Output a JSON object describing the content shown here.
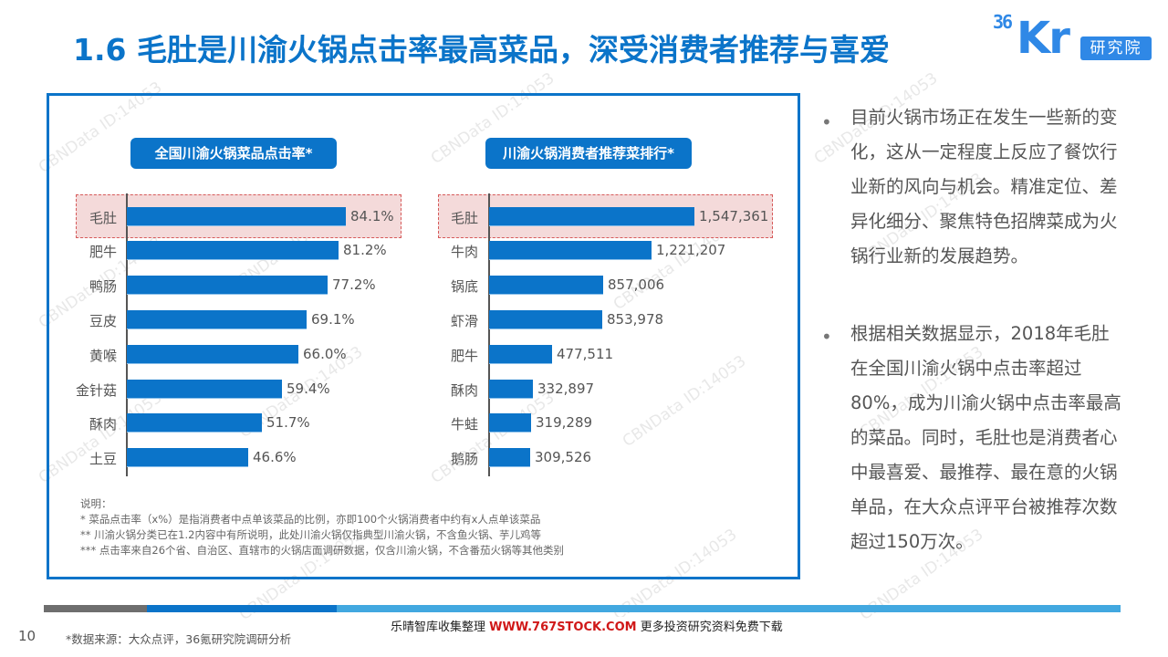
{
  "header": {
    "title": "1.6 毛肚是川渝火锅点击率最高菜品，深受消费者推荐与喜爱",
    "logo": {
      "number": "36",
      "letters": "Kr",
      "badge": "研究院"
    }
  },
  "colors": {
    "title": "#0b74c9",
    "bar": "#0b74c9",
    "highlight_fill": "#f4dada",
    "highlight_border": "#d65a5a",
    "logo": "#2f88e6",
    "stripe_gray": "#6e6e6e",
    "stripe_blue": "#0b74c9",
    "stripe_light": "#42a8e0",
    "banner_red": "#d01818"
  },
  "chart_data": [
    {
      "type": "bar",
      "orientation": "horizontal",
      "title": "全国川渝火锅菜品点击率*",
      "categories": [
        "毛肚",
        "肥牛",
        "鸭肠",
        "豆皮",
        "黄喉",
        "金针菇",
        "酥肉",
        "土豆"
      ],
      "values": [
        84.1,
        81.2,
        77.2,
        69.1,
        66.0,
        59.4,
        51.7,
        46.6
      ],
      "labels": [
        "84.1%",
        "81.2%",
        "77.2%",
        "69.1%",
        "66.0%",
        "59.4%",
        "51.7%",
        "46.6%"
      ],
      "unit": "%",
      "highlight": "毛肚",
      "xlim": [
        0,
        84.1
      ],
      "grid": false,
      "legend": "none"
    },
    {
      "type": "bar",
      "orientation": "horizontal",
      "title": "川渝火锅消费者推荐菜排行*",
      "categories": [
        "毛肚",
        "牛肉",
        "锅底",
        "虾滑",
        "肥牛",
        "酥肉",
        "牛蛙",
        "鹅肠"
      ],
      "values": [
        1547361,
        1221207,
        857006,
        853978,
        477511,
        332897,
        319289,
        309526
      ],
      "labels": [
        "1,547,361",
        "1,221,207",
        "857,006",
        "853,978",
        "477,511",
        "332,897",
        "319,289",
        "309,526"
      ],
      "unit": "次",
      "highlight": "毛肚",
      "xlim": [
        0,
        1547361
      ],
      "grid": false,
      "legend": "none"
    }
  ],
  "notes": {
    "heading": "说明：",
    "lines": [
      "* 菜品点击率（x%）是指消费者中点单该菜品的比例，亦即100个火锅消费者中约有x人点单该菜品",
      "** 川渝火锅分类已在1.2内容中有所说明，此处川渝火锅仅指典型川渝火锅，不含鱼火锅、芋儿鸡等",
      "*** 点击率来自26个省、自治区、直辖市的火锅店面调研数据，仅含川渝火锅，不含番茄火锅等其他类别"
    ]
  },
  "sidebar": {
    "bullet_symbol": "•",
    "bullets": [
      "目前火锅市场正在发生一些新的变化，这从一定程度上反应了餐饮行业新的风向与机会。精准定位、差异化细分、聚焦特色招牌菜成为火锅行业新的发展趋势。",
      "根据相关数据显示，2018年毛肚在全国川渝火锅中点击率超过80%，成为川渝火锅中点击率最高的菜品。同时，毛肚也是消费者心中最喜爱、最推荐、最在意的火锅单品，在大众点评平台被推荐次数超过150万次。"
    ]
  },
  "footer": {
    "page_number": "10",
    "source": "*数据来源：大众点评，36氪研究院调研分析",
    "banner_prefix": "乐晴智库收集整理",
    "banner_url": "WWW.767STOCK.COM",
    "banner_suffix": "更多投资研究资料免费下载"
  },
  "watermark": "CBNData ID:14053"
}
